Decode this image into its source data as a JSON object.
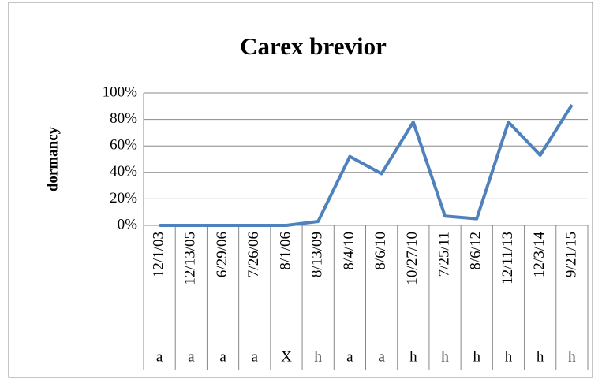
{
  "chart_data": {
    "type": "line",
    "title": "Carex brevior",
    "y_label": "dormancy",
    "categories": [
      "12/1/03",
      "12/13/05",
      "6/29/06",
      "7/26/06",
      "8/1/06",
      "8/13/09",
      "8/4/10",
      "8/6/10",
      "10/27/10",
      "7/25/11",
      "8/6/12",
      "12/11/13",
      "12/3/14",
      "9/21/15"
    ],
    "subcategories": [
      "a",
      "a",
      "a",
      "a",
      "X",
      "h",
      "a",
      "a",
      "h",
      "h",
      "h",
      "h",
      "h",
      "h"
    ],
    "series": [
      {
        "name": "dormancy",
        "color": "#4f81bd",
        "values": [
          0,
          0,
          0,
          0,
          0,
          3,
          52,
          39,
          78,
          7,
          5,
          78,
          53,
          91
        ]
      }
    ],
    "ylim": [
      0,
      100
    ],
    "yticks": [
      {
        "value": 0,
        "label": "0%"
      },
      {
        "value": 20,
        "label": "20%"
      },
      {
        "value": 40,
        "label": "40%"
      },
      {
        "value": 60,
        "label": "60%"
      },
      {
        "value": 80,
        "label": "80%"
      },
      {
        "value": 100,
        "label": "100%"
      }
    ],
    "grid": true
  }
}
